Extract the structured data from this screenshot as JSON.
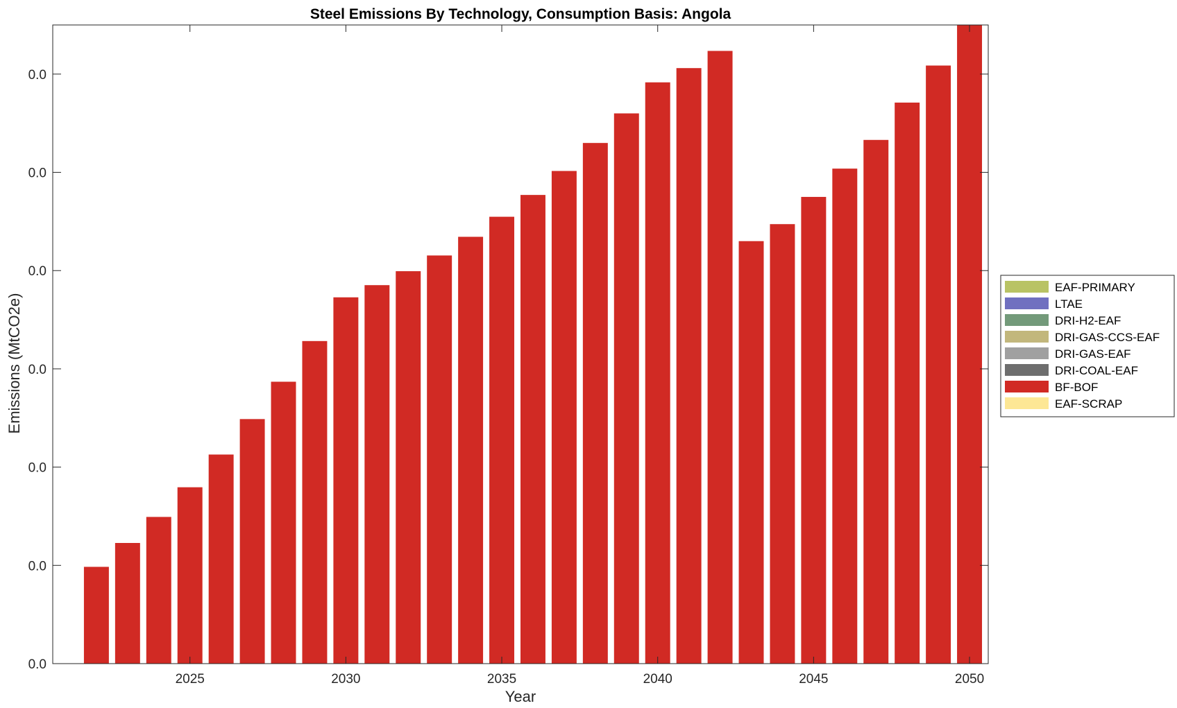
{
  "chart_data": {
    "type": "bar",
    "stacked": true,
    "title": "Steel Emissions By Technology, Consumption Basis: Angola",
    "xlabel": "Year",
    "ylabel": "Emissions (MtCO2e)",
    "x": [
      2022,
      2023,
      2024,
      2025,
      2026,
      2027,
      2028,
      2029,
      2030,
      2031,
      2032,
      2033,
      2034,
      2035,
      2036,
      2037,
      2038,
      2039,
      2040,
      2041,
      2042,
      2043,
      2044,
      2045,
      2046,
      2047,
      2048,
      2049,
      2050
    ],
    "xticks": [
      2025,
      2030,
      2035,
      2040,
      2045,
      2050
    ],
    "xlim": [
      2020.6,
      2050.6
    ],
    "ylim": [
      0,
      0.065
    ],
    "yticks": [
      0,
      0.01,
      0.02,
      0.03,
      0.04,
      0.05,
      0.06
    ],
    "ytick_labels": [
      "0.0",
      "0.0",
      "0.0",
      "0.0",
      "0.0",
      "0.0",
      "0.0"
    ],
    "grid": false,
    "legend_position": "right",
    "series": [
      {
        "name": "EAF-PRIMARY",
        "color": "#b9c364",
        "values": [
          0,
          0,
          0,
          0,
          0,
          0,
          0,
          0,
          0,
          0,
          0,
          0,
          0,
          0,
          0,
          0,
          0,
          0,
          0,
          0,
          0,
          0,
          0,
          0,
          0,
          0,
          0,
          0,
          0
        ]
      },
      {
        "name": "LTAE",
        "color": "#7070c0",
        "values": [
          0,
          0,
          0,
          0,
          0,
          0,
          0,
          0,
          0,
          0,
          0,
          0,
          0,
          0,
          0,
          0,
          0,
          0,
          0,
          0,
          0,
          0,
          0,
          0,
          0,
          0,
          0,
          0,
          0
        ]
      },
      {
        "name": "DRI-H2-EAF",
        "color": "#739a7a",
        "values": [
          0,
          0,
          0,
          0,
          0,
          0,
          0,
          0,
          0,
          0,
          0,
          0,
          0,
          0,
          0,
          0,
          0,
          0,
          0,
          0,
          0,
          0,
          0,
          0,
          0,
          0,
          0,
          0,
          0
        ]
      },
      {
        "name": "DRI-GAS-CCS-EAF",
        "color": "#c2b77c",
        "values": [
          0,
          0,
          0,
          0,
          0,
          0,
          0,
          0,
          0,
          0,
          0,
          0,
          0,
          0,
          0,
          0,
          0,
          0,
          0,
          0,
          0,
          0,
          0,
          0,
          0,
          0,
          0,
          0,
          0
        ]
      },
      {
        "name": "DRI-GAS-EAF",
        "color": "#a0a0a0",
        "values": [
          0,
          0,
          0,
          0,
          0,
          0,
          0,
          0,
          0,
          0,
          0,
          0,
          0,
          0,
          0,
          0,
          0,
          0,
          0,
          0,
          0,
          0,
          0,
          0,
          0,
          0,
          0,
          0,
          0
        ]
      },
      {
        "name": "DRI-COAL-EAF",
        "color": "#6e6e6e",
        "values": [
          0,
          0,
          0,
          0,
          0,
          0,
          0,
          0,
          0,
          0,
          0,
          0,
          0,
          0,
          0,
          0,
          0,
          0,
          0,
          0,
          0,
          0,
          0,
          0,
          0,
          0,
          0,
          0,
          0
        ]
      },
      {
        "name": "BF-BOF",
        "color": "#d12a24",
        "values": [
          0.00985,
          0.01228,
          0.01493,
          0.01795,
          0.02128,
          0.02489,
          0.02869,
          0.03283,
          0.03728,
          0.03852,
          0.03994,
          0.04154,
          0.04344,
          0.04548,
          0.0477,
          0.05014,
          0.05299,
          0.056,
          0.05916,
          0.06061,
          0.06236,
          0.043,
          0.04473,
          0.0475,
          0.05038,
          0.0533,
          0.0571,
          0.06087,
          0.065
        ]
      },
      {
        "name": "EAF-SCRAP",
        "color": "#fde795",
        "values": [
          0,
          0,
          0,
          0,
          0,
          0,
          0,
          0,
          0,
          0,
          0,
          0,
          0,
          0,
          0,
          0,
          0,
          0,
          0,
          0,
          0,
          0,
          0,
          0,
          0,
          0,
          0,
          0,
          0
        ]
      }
    ]
  }
}
